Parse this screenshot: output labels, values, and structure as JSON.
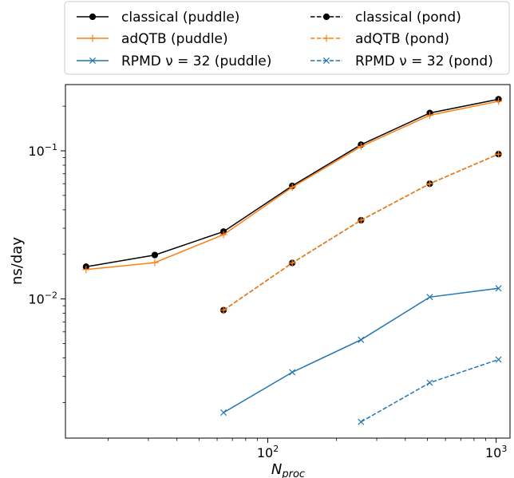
{
  "chart_data": {
    "type": "line",
    "xscale": "log",
    "yscale": "log",
    "xlim": [
      13,
      1150
    ],
    "ylim": [
      0.00115,
      0.28
    ],
    "xlabel_base": "N",
    "xlabel_sub": "proc",
    "ylabel": "ns/day",
    "legend_placement": "top (above plot, 2 columns)",
    "grid": false,
    "xticks": [
      {
        "value": 100,
        "base": "10",
        "exp": "2"
      },
      {
        "value": 1000,
        "base": "10",
        "exp": "3"
      }
    ],
    "yticks": [
      {
        "value": 0.01,
        "base": "10",
        "exp": "−2"
      },
      {
        "value": 0.1,
        "base": "10",
        "exp": "−1"
      }
    ],
    "series": [
      {
        "name": "classical (puddle)",
        "color": "#000000",
        "marker": "circle",
        "linestyle": "solid",
        "x": [
          16,
          32,
          64,
          128,
          256,
          512,
          1024
        ],
        "y": [
          0.0165,
          0.0198,
          0.0285,
          0.058,
          0.11,
          0.18,
          0.223
        ]
      },
      {
        "name": "adQTB (puddle)",
        "color": "#ff7f0e",
        "marker": "plus",
        "linestyle": "solid",
        "x": [
          16,
          32,
          64,
          128,
          256,
          512,
          1024
        ],
        "y": [
          0.0158,
          0.0176,
          0.0272,
          0.0568,
          0.107,
          0.174,
          0.216
        ]
      },
      {
        "name": "RPMD ν = 32 (puddle)",
        "color": "#1f77b4",
        "marker": "x",
        "linestyle": "solid",
        "x": [
          64,
          128,
          256,
          512,
          1024
        ],
        "y": [
          0.00171,
          0.0032,
          0.0053,
          0.0103,
          0.0118
        ]
      },
      {
        "name": "classical (pond)",
        "color": "#000000",
        "marker": "circle",
        "linestyle": "dashed",
        "x": [
          64,
          128,
          256,
          512,
          1024
        ],
        "y": [
          0.0084,
          0.0175,
          0.034,
          0.06,
          0.095
        ]
      },
      {
        "name": "adQTB (pond)",
        "color": "#ff7f0e",
        "marker": "plus",
        "linestyle": "dashed",
        "x": [
          64,
          128,
          256,
          512,
          1024
        ],
        "y": [
          0.0084,
          0.0175,
          0.034,
          0.06,
          0.095
        ]
      },
      {
        "name": "RPMD ν = 32 (pond)",
        "color": "#1f77b4",
        "marker": "x",
        "linestyle": "dashed",
        "x": [
          256,
          512,
          1024
        ],
        "y": [
          0.00148,
          0.00272,
          0.0039
        ]
      }
    ]
  }
}
